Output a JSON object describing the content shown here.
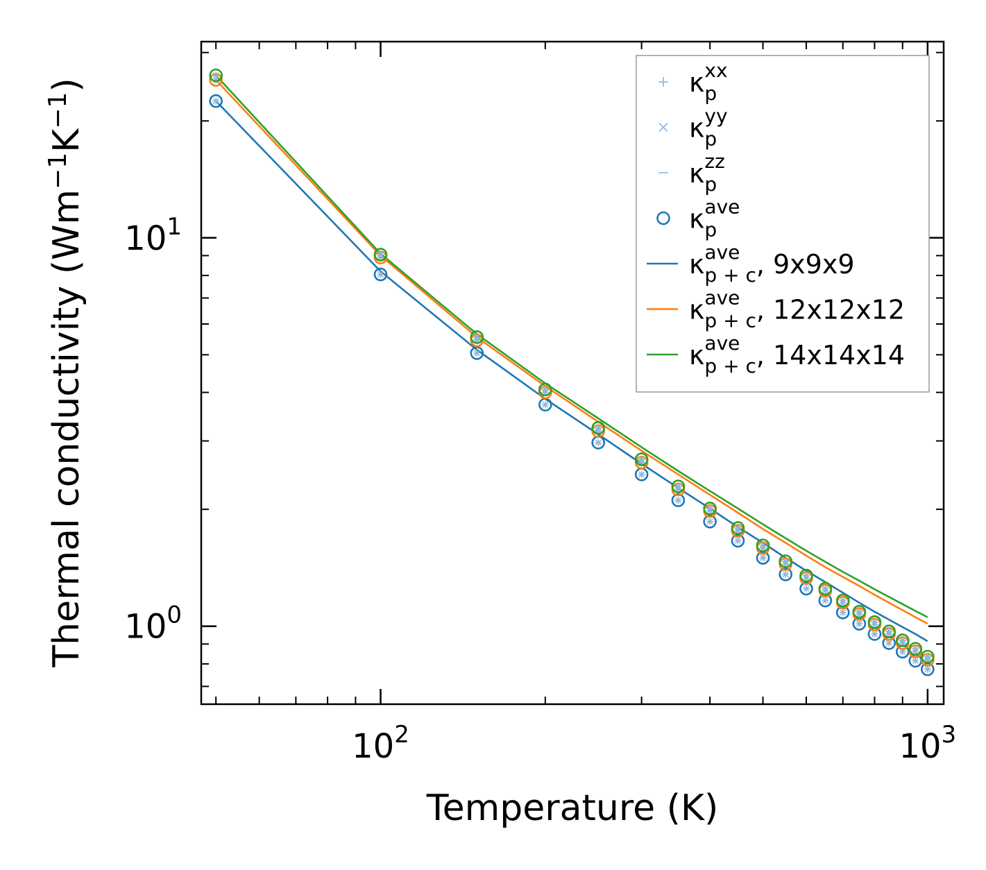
{
  "chart_data": {
    "type": "line",
    "xscale": "log",
    "yscale": "log",
    "xlabel": "Temperature (K)",
    "ylabel": {
      "prefix": "Thermal conductivity (Wm",
      "mid": "K",
      "suffix": ")",
      "exp": "−1"
    },
    "xlim": [
      47,
      1070
    ],
    "ylim": [
      0.63,
      32
    ],
    "x_major_ticks": [
      {
        "value": 100,
        "base": "10",
        "exp": "2"
      },
      {
        "value": 1000,
        "base": "10",
        "exp": "3"
      }
    ],
    "y_major_ticks": [
      {
        "value": 1,
        "base": "10",
        "exp": "0"
      },
      {
        "value": 10,
        "base": "10",
        "exp": "1"
      }
    ],
    "x": [
      50,
      100,
      150,
      200,
      250,
      300,
      350,
      400,
      450,
      500,
      550,
      600,
      650,
      700,
      750,
      800,
      850,
      900,
      950,
      1000
    ],
    "series": [
      {
        "name": "κ_p^ave, 9x9x9",
        "kind": "markers",
        "color": "#1f77b4",
        "values": [
          22.5,
          8.05,
          5.05,
          3.72,
          2.97,
          2.46,
          2.11,
          1.86,
          1.66,
          1.5,
          1.36,
          1.25,
          1.165,
          1.085,
          1.015,
          0.955,
          0.905,
          0.86,
          0.815,
          0.775
        ]
      },
      {
        "name": "κ_p^ave, 12x12x12",
        "kind": "markers",
        "color": "#ff7f0e",
        "values": [
          25.5,
          8.9,
          5.45,
          4.0,
          3.18,
          2.64,
          2.25,
          1.98,
          1.76,
          1.59,
          1.445,
          1.33,
          1.235,
          1.15,
          1.075,
          1.01,
          0.955,
          0.905,
          0.862,
          0.82
        ]
      },
      {
        "name": "κ_p^ave, 14x14x14",
        "kind": "markers",
        "color": "#2ca02c",
        "values": [
          26.2,
          9.05,
          5.55,
          4.07,
          3.24,
          2.69,
          2.29,
          2.01,
          1.79,
          1.615,
          1.47,
          1.35,
          1.25,
          1.165,
          1.09,
          1.025,
          0.97,
          0.92,
          0.875,
          0.835
        ]
      },
      {
        "name": "κ_p+c^ave, 9x9x9",
        "kind": "line",
        "color": "#1f77b4",
        "values": [
          22.5,
          8.2,
          5.15,
          3.85,
          3.12,
          2.62,
          2.27,
          2.01,
          1.8,
          1.64,
          1.5,
          1.39,
          1.3,
          1.22,
          1.15,
          1.09,
          1.04,
          0.995,
          0.955,
          0.915
        ]
      },
      {
        "name": "κ_p+c^ave, 12x12x12",
        "kind": "line",
        "color": "#ff7f0e",
        "values": [
          25.5,
          9.0,
          5.55,
          4.15,
          3.36,
          2.83,
          2.46,
          2.18,
          1.96,
          1.78,
          1.64,
          1.52,
          1.42,
          1.34,
          1.27,
          1.205,
          1.15,
          1.1,
          1.055,
          1.015
        ]
      },
      {
        "name": "κ_p+c^ave, 14x14x14",
        "kind": "line",
        "color": "#2ca02c",
        "values": [
          26.2,
          9.1,
          5.65,
          4.22,
          3.43,
          2.89,
          2.51,
          2.23,
          2.01,
          1.83,
          1.685,
          1.565,
          1.465,
          1.38,
          1.31,
          1.245,
          1.19,
          1.14,
          1.095,
          1.055
        ]
      }
    ],
    "legend": {
      "position": "top-right",
      "entries": [
        {
          "label": "κ",
          "sub": "p",
          "sup": "xx",
          "tail": "",
          "marker": "plus",
          "color": "#8fb6d8"
        },
        {
          "label": "κ",
          "sub": "p",
          "sup": "yy",
          "tail": "",
          "marker": "cross",
          "color": "#8fb6d8"
        },
        {
          "label": "κ",
          "sub": "p",
          "sup": "zz",
          "tail": "",
          "marker": "dash",
          "color": "#8fb6d8"
        },
        {
          "label": "κ",
          "sub": "p",
          "sup": "ave",
          "tail": "",
          "marker": "circle",
          "color": "#1f77b4"
        },
        {
          "label": "κ",
          "sub": "p + c",
          "sup": "ave",
          "tail": ", 9x9x9",
          "marker": "line",
          "color": "#1f77b4"
        },
        {
          "label": "κ",
          "sub": "p + c",
          "sup": "ave",
          "tail": ", 12x12x12",
          "marker": "line",
          "color": "#ff7f0e"
        },
        {
          "label": "κ",
          "sub": "p + c",
          "sup": "ave",
          "tail": ", 14x14x14",
          "marker": "line",
          "color": "#2ca02c"
        }
      ]
    }
  }
}
